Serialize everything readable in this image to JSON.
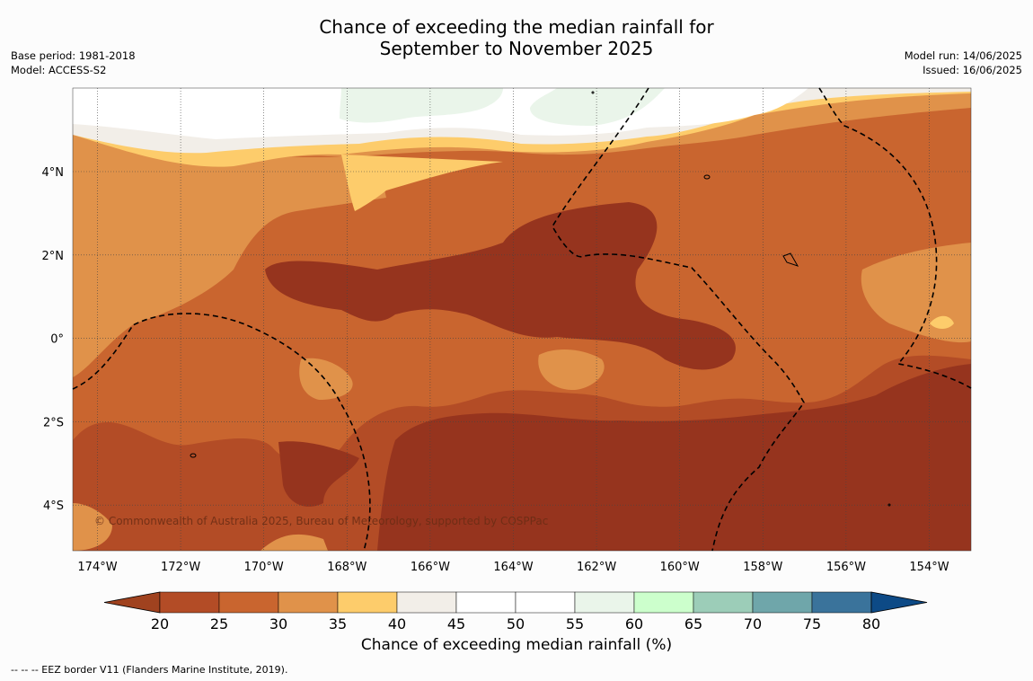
{
  "title_line1": "Chance of exceeding the median rainfall for",
  "title_line2": "September to November 2025",
  "base_period": "Base period: 1981-2018",
  "model": "Model: ACCESS-S2",
  "model_run": "Model run: 14/06/2025",
  "issued": "Issued: 16/06/2025",
  "copyright": "© Commonwealth of Australia 2025, Bureau of Meteorology, supported by COSPPac",
  "lon_labels": [
    "174°W",
    "172°W",
    "170°W",
    "168°W",
    "166°W",
    "164°W",
    "162°W",
    "160°W",
    "158°W",
    "156°W",
    "154°W"
  ],
  "lat_labels": [
    "4°N",
    "2°N",
    "0°",
    "2°S",
    "4°S"
  ],
  "colorbar": {
    "title": "Chance of exceeding median rainfall (%)",
    "ticks": [
      "20",
      "25",
      "30",
      "35",
      "40",
      "45",
      "50",
      "55",
      "60",
      "65",
      "70",
      "75",
      "80"
    ],
    "colors": [
      "#a0421f",
      "#b34c26",
      "#c9652f",
      "#e0924a",
      "#fdcc6b",
      "#f2eee8",
      "#ffffff",
      "#ffffff",
      "#eaf5ea",
      "#ccffcc",
      "#9ccdb8",
      "#6fa6aa",
      "#3a739b",
      "#0d4a86"
    ]
  },
  "footnote": "--  --  -- EEZ border V11 (Flanders Marine Institute, 2019)."
}
